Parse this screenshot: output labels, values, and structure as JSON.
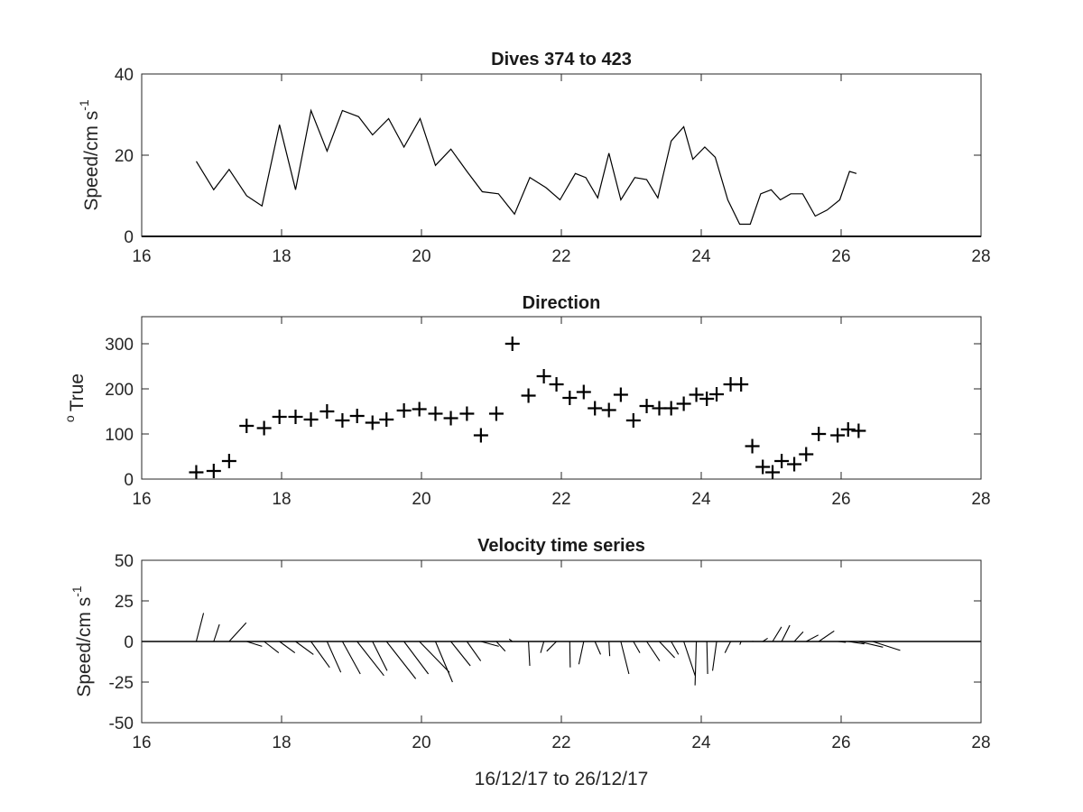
{
  "chart_data": [
    {
      "type": "line",
      "title": "Dives 374 to 423",
      "ylabel": "Speed/cm s",
      "ylabel_superscript": "-1",
      "xlim": [
        16,
        28
      ],
      "ylim": [
        0,
        40
      ],
      "xticks": [
        16,
        18,
        20,
        22,
        24,
        26,
        28
      ],
      "yticks": [
        0,
        20,
        40
      ],
      "series": [
        {
          "x": [
            16.78,
            17.03,
            17.25,
            17.5,
            17.72,
            17.97,
            18.2,
            18.42,
            18.65,
            18.87,
            19.1,
            19.3,
            19.53,
            19.75,
            19.98,
            20.2,
            20.42,
            20.65,
            20.87,
            21.1,
            21.33,
            21.55,
            21.78,
            21.98,
            22.2,
            22.35,
            22.52,
            22.68,
            22.85,
            23.05,
            23.22,
            23.38,
            23.57,
            23.75,
            23.88,
            24.05,
            24.2,
            24.38,
            24.55,
            24.7,
            24.85,
            25.0,
            25.13,
            25.28,
            25.45,
            25.63,
            25.8,
            25.98,
            26.12,
            26.22
          ],
          "y": [
            18.5,
            11.5,
            16.5,
            10.0,
            7.5,
            27.5,
            11.5,
            31.0,
            21.0,
            31.0,
            29.5,
            25.0,
            29.0,
            22.0,
            29.0,
            17.5,
            21.5,
            16.0,
            11.0,
            10.5,
            5.5,
            14.5,
            12.0,
            9.0,
            15.5,
            14.5,
            9.5,
            20.5,
            9.0,
            14.5,
            14.0,
            9.5,
            23.5,
            27.0,
            19.0,
            22.0,
            19.5,
            9.0,
            3.0,
            3.0,
            10.5,
            11.5,
            9.0,
            10.5,
            10.5,
            5.0,
            6.5,
            9.0,
            16.0,
            15.5
          ]
        }
      ]
    },
    {
      "type": "scatter",
      "title": "Direction",
      "ylabel": "True",
      "ylabel_prefix_superscript": "o",
      "xlim": [
        16,
        28
      ],
      "ylim": [
        0,
        360
      ],
      "xticks": [
        16,
        18,
        20,
        22,
        24,
        26,
        28
      ],
      "yticks": [
        0,
        100,
        200,
        300
      ],
      "series": [
        {
          "x": [
            16.78,
            17.03,
            17.25,
            17.5,
            17.75,
            17.97,
            18.2,
            18.42,
            18.65,
            18.87,
            19.08,
            19.3,
            19.5,
            19.75,
            19.97,
            20.2,
            20.42,
            20.65,
            20.85,
            21.07,
            21.3,
            21.53,
            21.75,
            21.93,
            22.12,
            22.32,
            22.48,
            22.68,
            22.85,
            23.03,
            23.22,
            23.4,
            23.57,
            23.75,
            23.93,
            24.08,
            24.22,
            24.42,
            24.57,
            24.73,
            24.88,
            25.02,
            25.15,
            25.33,
            25.5,
            25.68,
            25.95,
            26.1,
            26.25
          ],
          "y": [
            15,
            18,
            40,
            118,
            113,
            138,
            138,
            132,
            150,
            130,
            140,
            125,
            132,
            152,
            155,
            145,
            135,
            145,
            97,
            145,
            300,
            185,
            228,
            210,
            180,
            193,
            157,
            153,
            187,
            130,
            162,
            157,
            157,
            167,
            187,
            178,
            188,
            210,
            210,
            73,
            27,
            15,
            40,
            33,
            55,
            100,
            97,
            110,
            107
          ]
        }
      ]
    },
    {
      "type": "line",
      "subtype": "stick-vectors",
      "title": "Velocity time series",
      "ylabel": "Speed/cm s",
      "ylabel_superscript": "-1",
      "xlabel": "16/12/17 to 26/12/17",
      "xlim": [
        16,
        28
      ],
      "ylim": [
        -50,
        50
      ],
      "xticks": [
        16,
        18,
        20,
        22,
        24,
        26,
        28
      ],
      "yticks": [
        -50,
        -25,
        0,
        25,
        50
      ],
      "zero_line": true,
      "sticks": [
        {
          "x": 16.78,
          "u": 4.5,
          "v": 17.5
        },
        {
          "x": 17.03,
          "u": 3.5,
          "v": 10.5
        },
        {
          "x": 17.25,
          "u": 10.5,
          "v": 11.5
        },
        {
          "x": 17.5,
          "u": 9.5,
          "v": -3.0
        },
        {
          "x": 17.75,
          "u": 9.0,
          "v": -7.0
        },
        {
          "x": 17.97,
          "u": 9.5,
          "v": -7.0
        },
        {
          "x": 18.2,
          "u": 11.0,
          "v": -8.0
        },
        {
          "x": 18.42,
          "u": 11.5,
          "v": -16.0
        },
        {
          "x": 18.65,
          "u": 8.5,
          "v": -19.0
        },
        {
          "x": 18.87,
          "u": 11.0,
          "v": -20.0
        },
        {
          "x": 19.08,
          "u": 16.5,
          "v": -21.0
        },
        {
          "x": 19.3,
          "u": 9.0,
          "v": -18.0
        },
        {
          "x": 19.5,
          "u": 18.0,
          "v": -23.0
        },
        {
          "x": 19.75,
          "u": 15.0,
          "v": -20.0
        },
        {
          "x": 19.97,
          "u": 18.5,
          "v": -19.0
        },
        {
          "x": 20.2,
          "u": 10.5,
          "v": -25.0
        },
        {
          "x": 20.42,
          "u": 12.0,
          "v": -15.0
        },
        {
          "x": 20.65,
          "u": 8.5,
          "v": -12.0
        },
        {
          "x": 20.85,
          "u": 11.0,
          "v": -3.0
        },
        {
          "x": 21.07,
          "u": 5.5,
          "v": -6.0
        },
        {
          "x": 21.3,
          "u": -2.0,
          "v": 1.5
        },
        {
          "x": 21.53,
          "u": 0.8,
          "v": -15.0
        },
        {
          "x": 21.75,
          "u": -2.0,
          "v": -7.0
        },
        {
          "x": 21.93,
          "u": -6.0,
          "v": -6.0
        },
        {
          "x": 22.12,
          "u": 0.3,
          "v": -16.0
        },
        {
          "x": 22.32,
          "u": -3.0,
          "v": -14.0
        },
        {
          "x": 22.48,
          "u": 3.5,
          "v": -8.0
        },
        {
          "x": 22.68,
          "u": 0.5,
          "v": -9.0
        },
        {
          "x": 22.85,
          "u": 5.0,
          "v": -20.0
        },
        {
          "x": 23.03,
          "u": 4.0,
          "v": -7.0
        },
        {
          "x": 23.22,
          "u": 8.0,
          "v": -12.0
        },
        {
          "x": 23.4,
          "u": 9.5,
          "v": -10.0
        },
        {
          "x": 23.57,
          "u": 4.5,
          "v": -8.0
        },
        {
          "x": 23.75,
          "u": 7.0,
          "v": -21.0
        },
        {
          "x": 23.93,
          "u": -0.8,
          "v": -27.0
        },
        {
          "x": 24.08,
          "u": 0.5,
          "v": -20.0
        },
        {
          "x": 24.22,
          "u": -2.5,
          "v": -18.0
        },
        {
          "x": 24.42,
          "u": -3.5,
          "v": -7.0
        },
        {
          "x": 24.57,
          "u": -0.8,
          "v": -2.0
        },
        {
          "x": 24.73,
          "u": 0.5,
          "v": 0.2
        },
        {
          "x": 24.88,
          "u": 3.0,
          "v": 2.0
        },
        {
          "x": 25.02,
          "u": 5.5,
          "v": 9.0
        },
        {
          "x": 25.15,
          "u": 5.0,
          "v": 10.0
        },
        {
          "x": 25.33,
          "u": 5.5,
          "v": 6.0
        },
        {
          "x": 25.5,
          "u": 7.5,
          "v": 4.0
        },
        {
          "x": 25.68,
          "u": 9.5,
          "v": 6.5
        },
        {
          "x": 25.95,
          "u": 5.0,
          "v": -0.5
        },
        {
          "x": 26.1,
          "u": 10.0,
          "v": -1.5
        },
        {
          "x": 26.25,
          "u": 15.0,
          "v": -3.5
        },
        {
          "x": 26.45,
          "u": 17.0,
          "v": -5.5
        }
      ]
    }
  ]
}
